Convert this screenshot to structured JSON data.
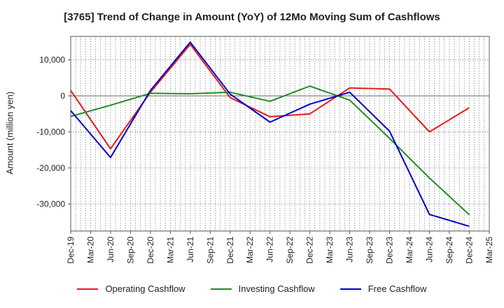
{
  "chart_data": {
    "type": "line",
    "title": "[3765]  Trend of Change in Amount (YoY) of 12Mo Moving Sum of Cashflows",
    "xlabel": "",
    "ylabel": "Amount (million yen)",
    "categories": [
      "Dec-19",
      "Mar-20",
      "Jun-20",
      "Sep-20",
      "Dec-20",
      "Mar-21",
      "Jun-21",
      "Sep-21",
      "Dec-21",
      "Mar-22",
      "Jun-22",
      "Sep-22",
      "Dec-22",
      "Mar-23",
      "Jun-23",
      "Sep-23",
      "Dec-23",
      "Mar-24",
      "Jun-24",
      "Sep-24",
      "Dec-24",
      "Mar-25"
    ],
    "ylim": [
      -37500,
      16500
    ],
    "yticks": [
      10000,
      0,
      -10000,
      -20000,
      -30000
    ],
    "ytick_labels": [
      "10,000",
      "0",
      "-10,000",
      "-20,000",
      "-30,000"
    ],
    "grid": true,
    "legend_position": "bottom",
    "series": [
      {
        "name": "Operating Cashflow",
        "color": "#e41a1c",
        "values": [
          1500,
          null,
          -14700,
          null,
          1000,
          null,
          14300,
          null,
          -500,
          null,
          -5800,
          null,
          -5000,
          null,
          2200,
          null,
          1900,
          null,
          -10000,
          null,
          -3300,
          null
        ]
      },
      {
        "name": "Investing Cashflow",
        "color": "#228B22",
        "values": [
          -5700,
          null,
          -2600,
          null,
          700,
          null,
          600,
          null,
          1000,
          null,
          -1500,
          null,
          2700,
          null,
          -1200,
          null,
          -11800,
          null,
          -22800,
          null,
          -33000,
          null
        ]
      },
      {
        "name": "Free Cashflow",
        "color": "#0000cc",
        "values": [
          -4100,
          null,
          -17100,
          null,
          1500,
          null,
          14900,
          null,
          500,
          null,
          -7300,
          null,
          -2300,
          null,
          1000,
          null,
          -9800,
          null,
          -32900,
          null,
          -36200,
          null
        ]
      }
    ]
  }
}
